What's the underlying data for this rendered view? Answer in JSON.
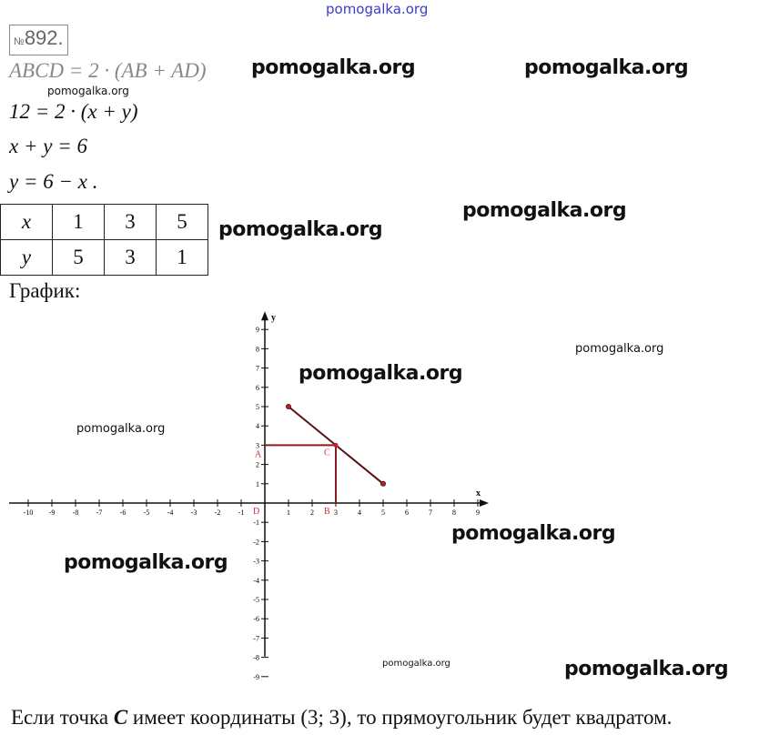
{
  "watermarks": {
    "top": "pomogalka.org",
    "items": [
      "pomogalka.org",
      "pomogalka.org",
      "pomogalka.org",
      "pomogalka.org",
      "pomogalka.org",
      "pomogalka.org",
      "pomogalka.org",
      "pomogalka.org",
      "pomogalka.org",
      "pomogalka.org",
      "pomogalka.org"
    ]
  },
  "problem": {
    "number_sign": "№",
    "number": "892."
  },
  "lines": {
    "l1": "ABCD = 2 · (AB + AD)",
    "l2": "12 = 2 · (x + y)",
    "l3": "x + y = 6",
    "l4": "y = 6 − x ."
  },
  "table": {
    "rows": [
      {
        "header": "x",
        "values": [
          "1",
          "3",
          "5"
        ]
      },
      {
        "header": "y",
        "values": [
          "5",
          "3",
          "1"
        ]
      }
    ]
  },
  "graph_label": "График:",
  "chart_data": {
    "type": "line",
    "xlabel": "x",
    "ylabel": "y",
    "xlim": [
      -10,
      9
    ],
    "ylim": [
      -9,
      9
    ],
    "x_ticks": [
      -10,
      -9,
      -8,
      -7,
      -6,
      -5,
      -4,
      -3,
      -2,
      -1,
      1,
      2,
      3,
      4,
      5,
      6,
      7,
      8,
      9
    ],
    "y_ticks": [
      9,
      8,
      7,
      6,
      5,
      4,
      3,
      2,
      1,
      -1,
      -2,
      -3,
      -4,
      -5,
      -6,
      -7,
      -8,
      -9
    ],
    "grid": false,
    "series": [
      {
        "points": [
          [
            1,
            5
          ],
          [
            5,
            1
          ]
        ],
        "color": "#5a0f14"
      }
    ],
    "rectangle": {
      "corners": [
        [
          0,
          0
        ],
        [
          0,
          3
        ],
        [
          3,
          3
        ],
        [
          3,
          0
        ]
      ],
      "color": "#8b1a1f"
    },
    "point_labels": [
      {
        "label": "A",
        "x": 0,
        "y": 3
      },
      {
        "label": "B",
        "x": 3,
        "y": 0
      },
      {
        "label": "C",
        "x": 3,
        "y": 3
      },
      {
        "label": "D",
        "x": 0,
        "y": 0
      }
    ],
    "label_color": "#d0303a"
  },
  "conclusion": {
    "pre": "Если точка ",
    "point": "C",
    "post": " имеет координаты (3; 3), то прямоугольник будет квадратом."
  }
}
